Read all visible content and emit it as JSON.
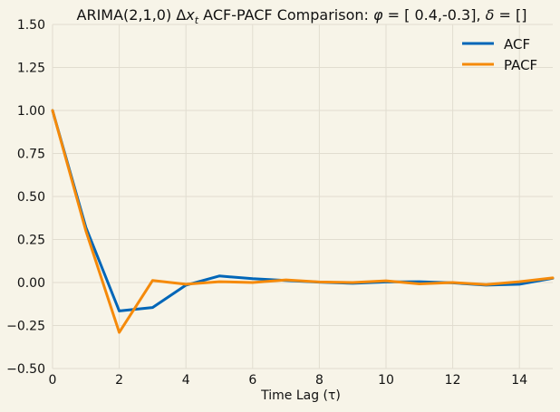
{
  "chart_data": {
    "type": "line",
    "title": "ARIMA(2,1,0) Δx_t ACF-PACF Comparison: φ = [ 0.4,-0.3], δ = []",
    "title_parts": {
      "prefix": "ARIMA(2,1,0) Δ",
      "var": "x",
      "sub": "t",
      "middle": " ACF-PACF Comparison: ",
      "phi": "φ",
      "phi_value": " = [ 0.4,-0.3], ",
      "delta": "δ",
      "delta_value": " = []"
    },
    "xlabel": "Time Lag (τ)",
    "ylabel": "",
    "xlim": [
      0,
      15
    ],
    "ylim": [
      -0.5,
      1.5
    ],
    "xticks": [
      "0",
      "2",
      "4",
      "6",
      "8",
      "10",
      "12",
      "14"
    ],
    "yticks": [
      "−0.50",
      "−0.25",
      "0.00",
      "0.25",
      "0.50",
      "0.75",
      "1.00",
      "1.25",
      "1.50"
    ],
    "grid": true,
    "legend_position": "top-right",
    "x": [
      0,
      1,
      2,
      3,
      4,
      5,
      6,
      7,
      8,
      9,
      10,
      11,
      12,
      13,
      14,
      15
    ],
    "series": [
      {
        "name": "ACF",
        "color": "#0066b8",
        "values": [
          1.0,
          0.32,
          -0.165,
          -0.145,
          -0.015,
          0.038,
          0.022,
          0.012,
          0.002,
          -0.005,
          0.003,
          0.005,
          -0.002,
          -0.015,
          -0.01,
          0.025
        ]
      },
      {
        "name": "PACF",
        "color": "#f58a0a",
        "values": [
          1.0,
          0.3,
          -0.29,
          0.012,
          -0.01,
          0.005,
          0.0,
          0.015,
          0.003,
          0.0,
          0.01,
          -0.008,
          0.0,
          -0.012,
          0.005,
          0.027
        ]
      }
    ]
  }
}
